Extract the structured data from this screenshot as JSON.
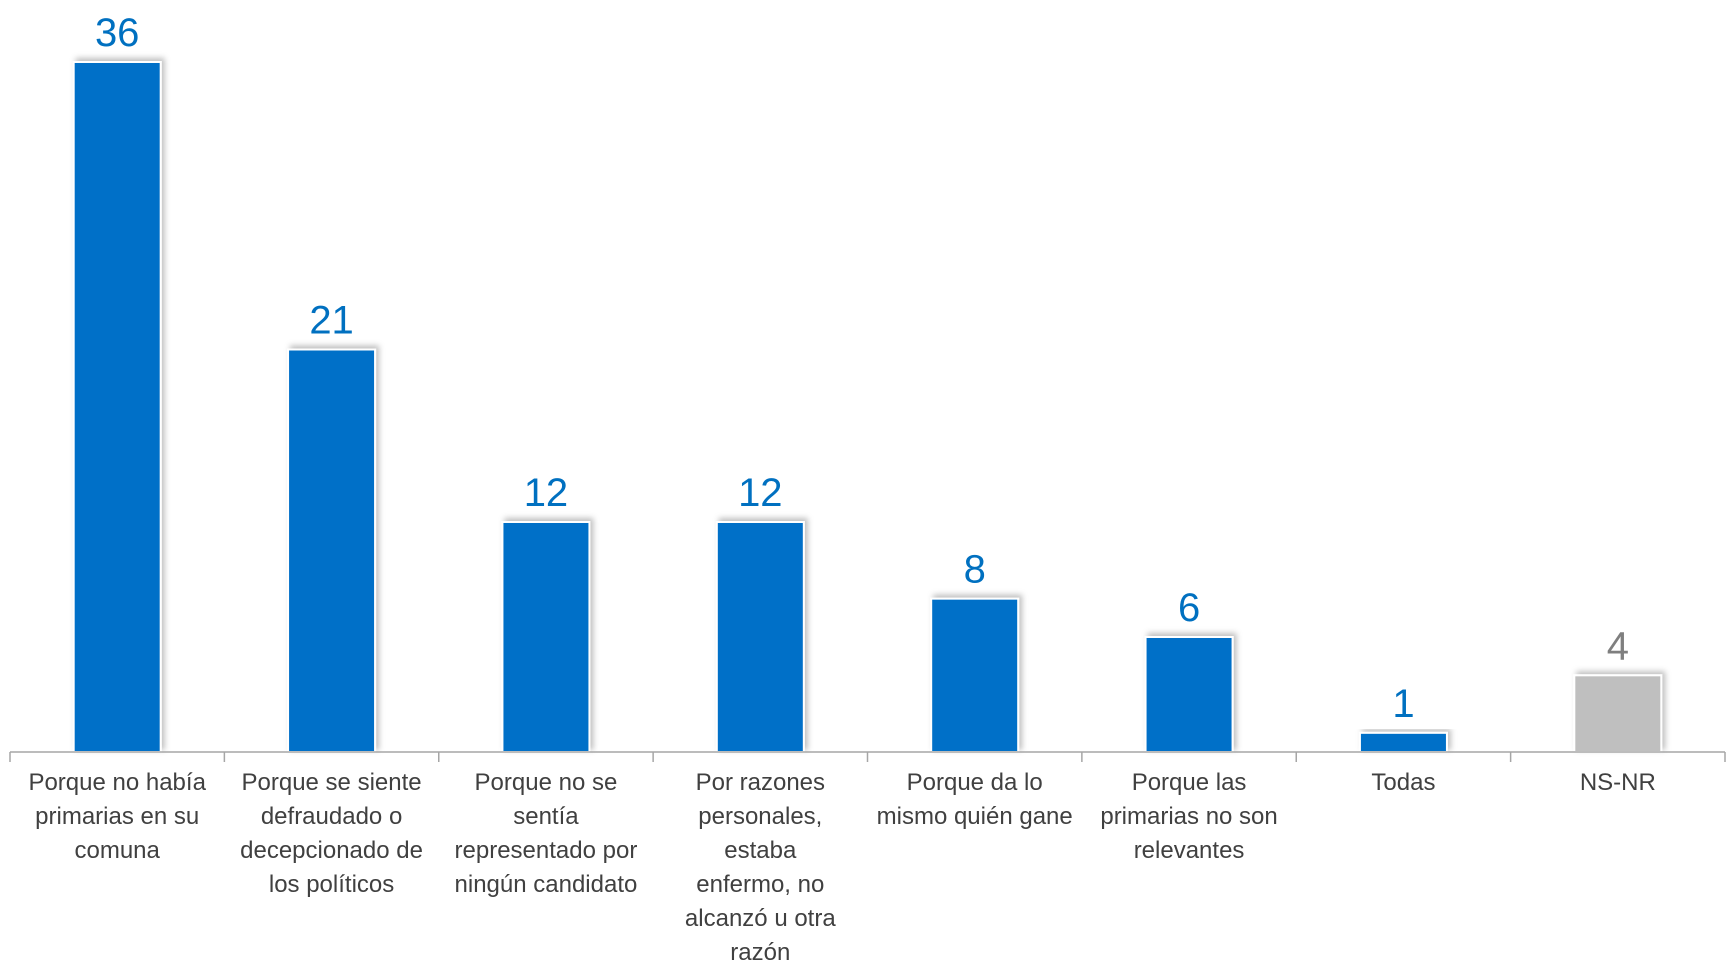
{
  "chart_data": {
    "type": "bar",
    "title": "",
    "xlabel": "",
    "ylabel": "",
    "ylim": [
      0,
      36
    ],
    "grid": false,
    "legend": "none",
    "categories": [
      "Porque no había primarias en su comuna",
      "Porque se siente defraudado o decepcionado de los políticos",
      "Porque no se sentía representado por ningún candidato",
      "Por razones personales, estaba enfermo, no alcanzó u otra razón",
      "Porque da lo mismo quién gane",
      "Porque las primarias no son relevantes",
      "Todas",
      "NS-NR"
    ],
    "category_lines": [
      [
        "Porque no había",
        "primarias en su",
        "comuna"
      ],
      [
        "Porque se siente",
        "defraudado o",
        "decepcionado de",
        "los políticos"
      ],
      [
        "Porque no se",
        "sentía",
        "representado por",
        "ningún candidato"
      ],
      [
        "Por razones",
        "personales, estaba",
        "enfermo, no",
        "alcanzó u otra",
        "razón"
      ],
      [
        "Porque da lo",
        "mismo quién gane"
      ],
      [
        "Porque las",
        "primarias no son",
        "relevantes"
      ],
      [
        "Todas"
      ],
      [
        "NS-NR"
      ]
    ],
    "values": [
      36,
      21,
      12,
      12,
      8,
      6,
      1,
      4
    ],
    "value_labels": [
      "36",
      "21",
      "12",
      "12",
      "8",
      "6",
      "1",
      "4"
    ],
    "colors": {
      "primary": "#0070C8",
      "ns_nr": "#BFBFBF",
      "primary_label": "#0070C0",
      "ns_nr_label": "#7F7F7F",
      "axis": "#A6A6A6",
      "category_text": "#404040"
    }
  }
}
